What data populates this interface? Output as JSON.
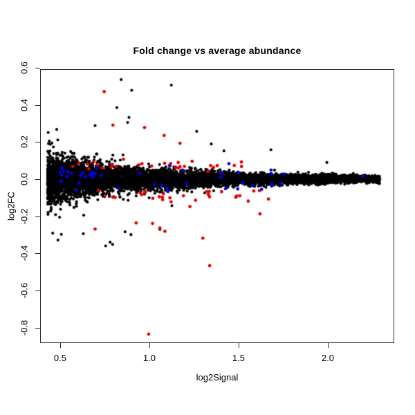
{
  "page": {
    "background": "#ffffff",
    "foreground": "#000000"
  },
  "chart_data": {
    "type": "scatter",
    "title": "Fold change vs average abundance",
    "xlabel": "log2Signal",
    "ylabel": "log2FC",
    "xlim": [
      0.388,
      2.372
    ],
    "ylim": [
      -0.883,
      0.592
    ],
    "x_ticks": [
      0.5,
      1.0,
      1.5,
      2.0
    ],
    "x_tick_labels": [
      "0.5",
      "1.0",
      "1.5",
      "2.0"
    ],
    "y_ticks": [
      0.6,
      0.4,
      0.2,
      0.0,
      -0.2,
      -0.4,
      -0.6,
      -0.8
    ],
    "y_tick_labels": [
      "0.6",
      "0.4",
      "0.2",
      "0.0",
      "-0.2",
      "-0.4",
      "-0.6",
      "-0.8"
    ],
    "grid": false,
    "legend": null,
    "axis_color": "#2b2b2b",
    "marker": "filled-dot",
    "marker_radius": {
      "black": 2.1,
      "colored": 2.4
    },
    "series": [
      {
        "name": "all-probes-black",
        "color": "#000000",
        "n": 7000,
        "shape": "funnel centered on log2FC=0, wide at low signal, converging to a point near x=2.29",
        "x_min": 0.43,
        "x_span": 1.86,
        "x_power": 1.3,
        "sd_floor": 0.006,
        "sd_amp": 0.058,
        "sd_tau": 0.62,
        "tail_prob": 0.018,
        "tail_tau": 0.8,
        "tail_mult_min": 2.2,
        "tail_mult_max": 4.7,
        "y_clamp": 0.36,
        "outliers": [
          [
            0.842,
            0.536
          ],
          [
            1.123,
            0.506
          ],
          [
            0.901,
            0.478
          ],
          [
            0.818,
            0.385
          ],
          [
            0.886,
            0.332
          ],
          [
            0.878,
            0.305
          ],
          [
            0.696,
            0.288
          ],
          [
            1.265,
            0.257
          ],
          [
            1.347,
            0.189
          ],
          [
            1.418,
            0.152
          ],
          [
            1.681,
            0.158
          ],
          [
            0.864,
            -0.284
          ],
          [
            0.897,
            -0.299
          ],
          [
            1.059,
            -0.271
          ],
          [
            0.78,
            -0.34
          ]
        ]
      },
      {
        "name": "spike-in-probes-red",
        "color": "#e00000",
        "n": 74,
        "bands": [
          {
            "n": 30,
            "x_range": [
              0.56,
              1.52
            ],
            "y_mean": 0.075,
            "y_sd": 0.012
          },
          {
            "n": 30,
            "x_range": [
              0.58,
              1.68
            ],
            "y_mean": -0.09,
            "y_sd": 0.018
          }
        ],
        "outliers": [
          [
            0.747,
            0.471
          ],
          [
            0.796,
            0.291
          ],
          [
            0.973,
            0.278
          ],
          [
            1.083,
            0.235
          ],
          [
            1.172,
            0.193
          ],
          [
            0.696,
            -0.269
          ],
          [
            0.926,
            -0.236
          ],
          [
            1.018,
            -0.239
          ],
          [
            1.059,
            -0.263
          ],
          [
            1.087,
            -0.281
          ],
          [
            1.3,
            -0.318
          ],
          [
            1.338,
            -0.466
          ],
          [
            1.62,
            -0.187
          ],
          [
            0.996,
            -0.835
          ]
        ]
      },
      {
        "name": "control-probes-blue",
        "color": "#0000ee",
        "n": 47,
        "clusters": [
          {
            "n": 16,
            "x_range": [
              0.5,
              0.74
            ],
            "y_mean": 0.033,
            "y_sd": 0.012
          },
          {
            "n": 22,
            "x_range": [
              0.55,
              1.8
            ],
            "y_abs_min": 0.02,
            "y_abs_sd": 0.02
          }
        ],
        "outliers": [
          [
            1.399,
            0.009
          ],
          [
            1.43,
            -0.047
          ],
          [
            1.495,
            -0.053
          ],
          [
            1.578,
            -0.035
          ],
          [
            1.754,
            0.027
          ],
          [
            2.197,
            0.016
          ],
          [
            1.115,
            0.071
          ],
          [
            0.506,
            -0.011
          ],
          [
            0.519,
            0.045
          ]
        ]
      }
    ]
  }
}
